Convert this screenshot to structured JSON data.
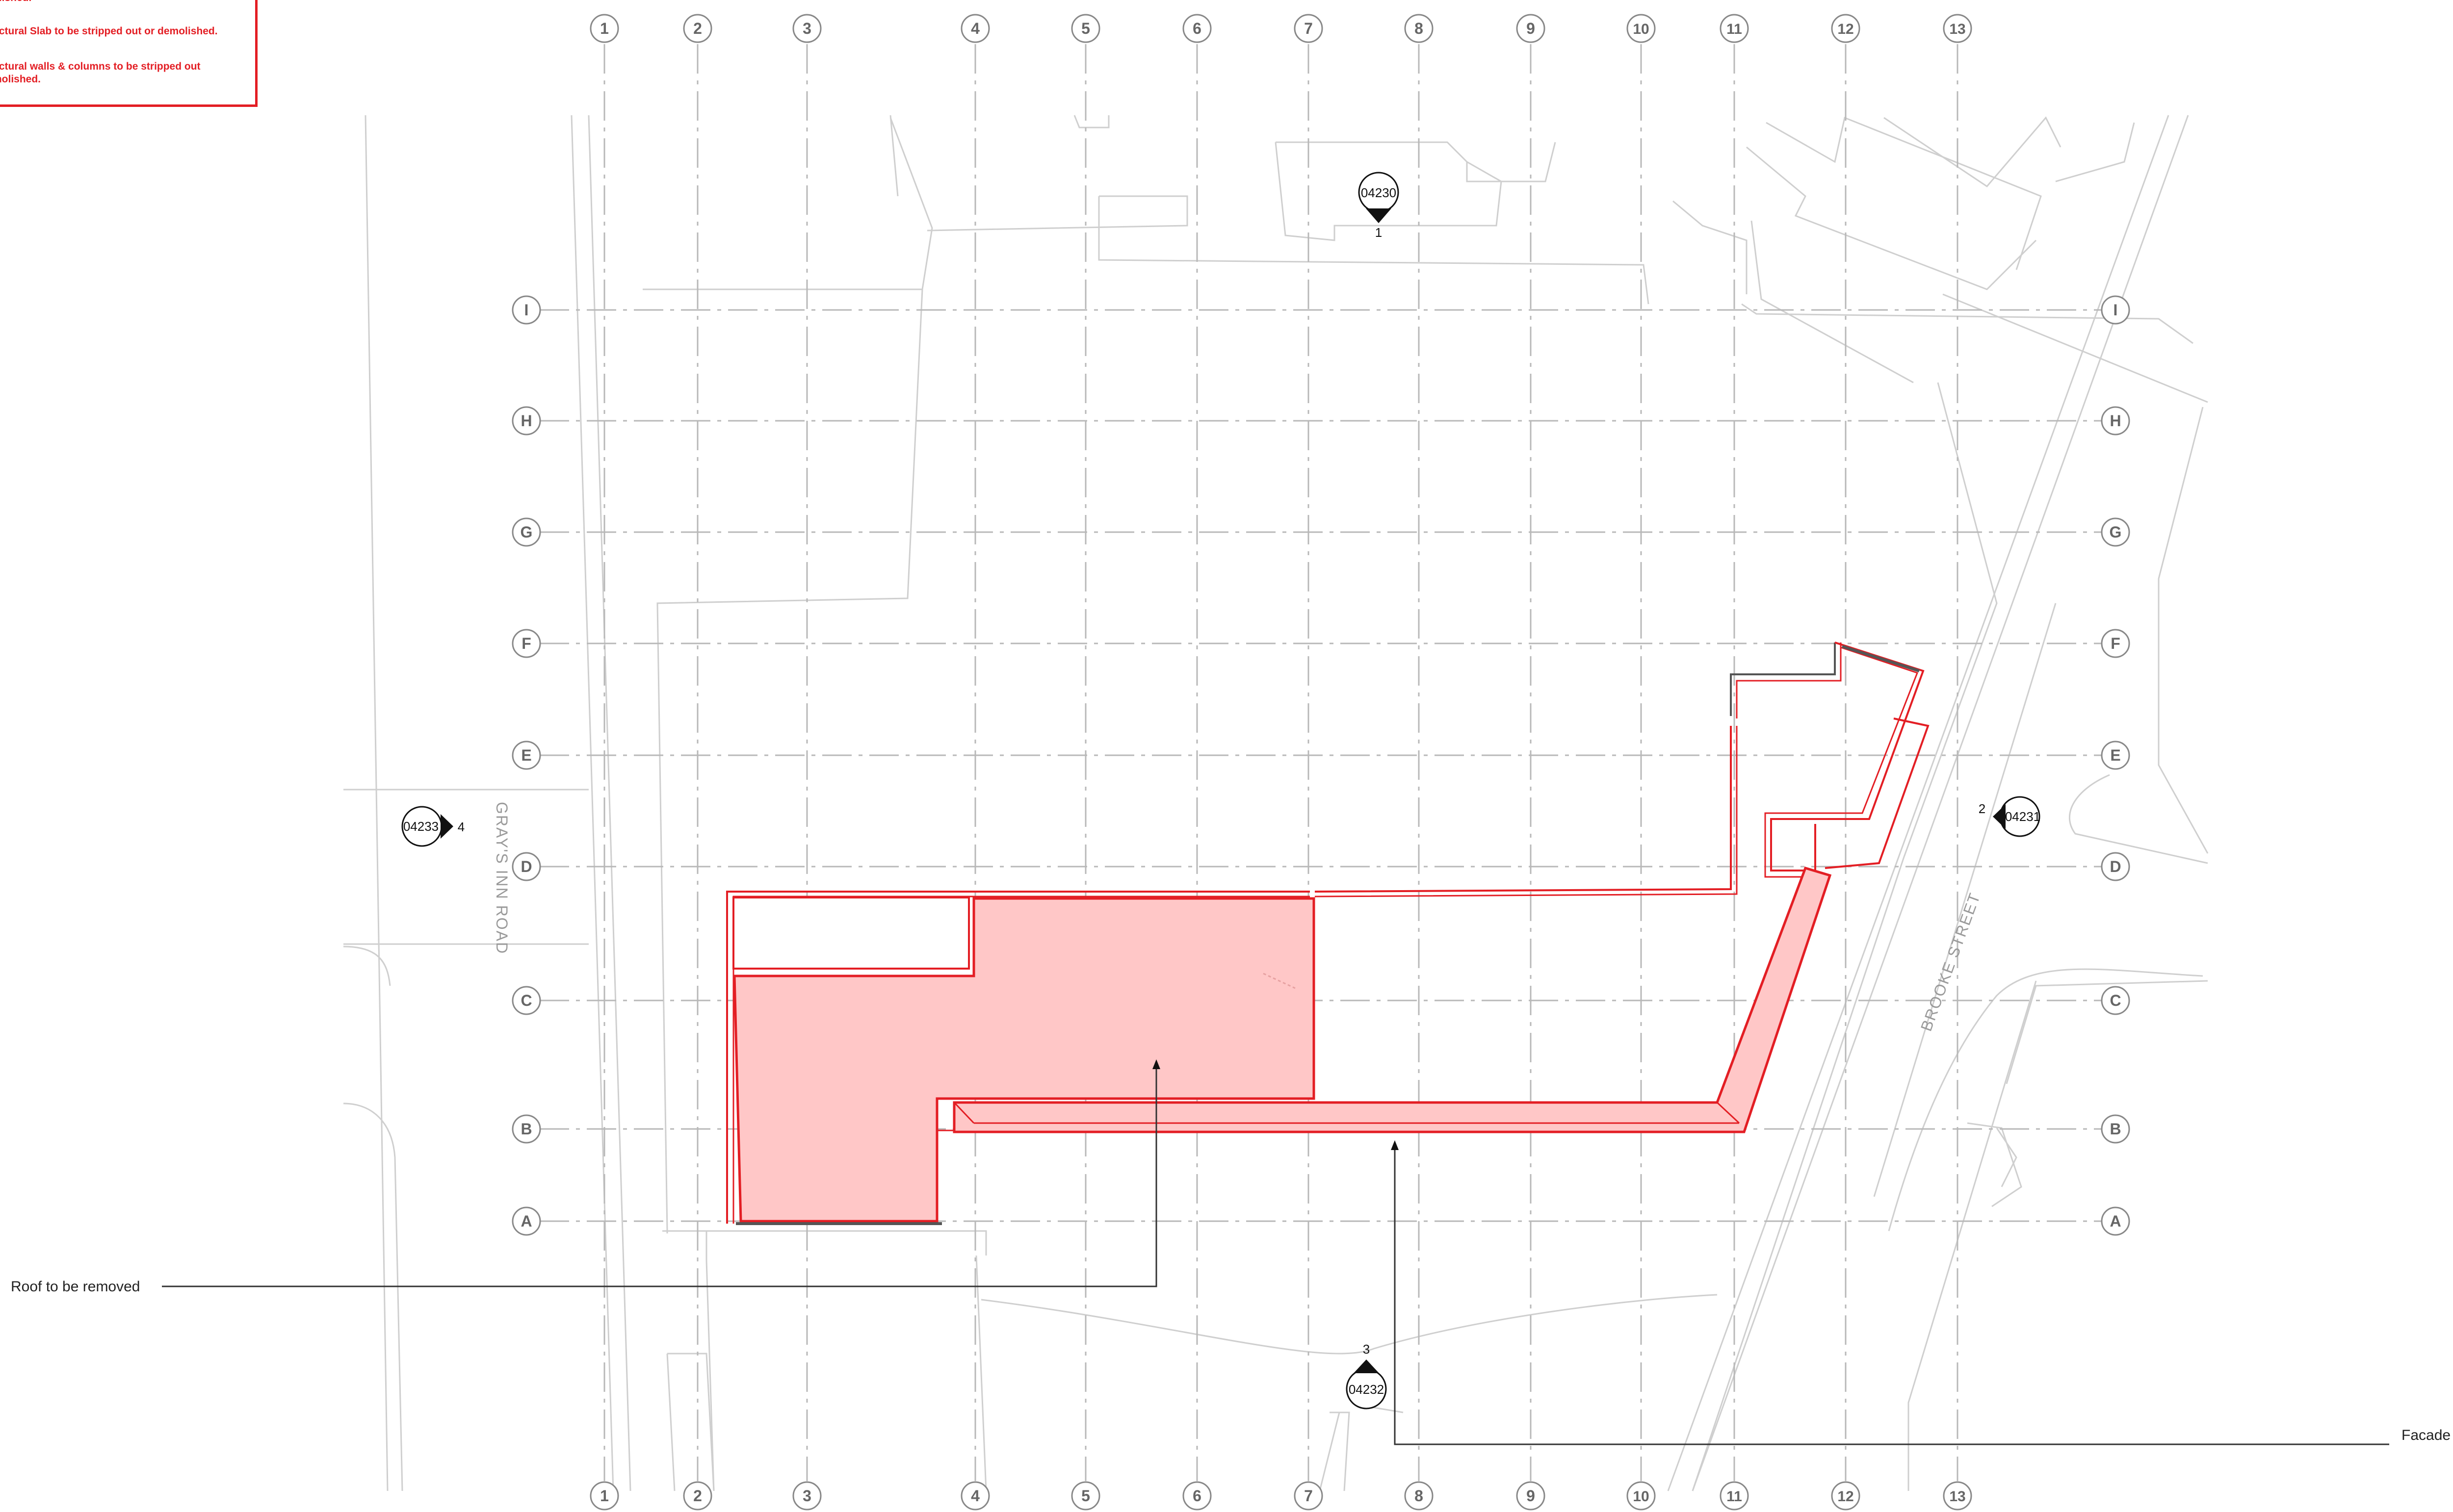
{
  "legend": {
    "items": [
      "olished.",
      "uctural Slab to be stripped out or demolished.",
      "uctural walls & columns to be stripped out\nmolished."
    ]
  },
  "grid": {
    "vertical_labels": [
      "1",
      "2",
      "3",
      "4",
      "5",
      "6",
      "7",
      "8",
      "9",
      "10",
      "11",
      "12",
      "13"
    ],
    "horizontal_labels": [
      "I",
      "H",
      "G",
      "F",
      "E",
      "D",
      "C",
      "B",
      "A"
    ]
  },
  "streets": {
    "grays_inn_road": "GRAY'S INN ROAD",
    "brooke_street": "BROOKE STREET"
  },
  "section_markers": [
    {
      "ref": "04230",
      "number": "1"
    },
    {
      "ref": "04231",
      "number": "2"
    },
    {
      "ref": "04232",
      "number": "3"
    },
    {
      "ref": "04233",
      "number": "4"
    }
  ],
  "callouts": {
    "roof": "Roof to be removed",
    "facade": "Facade to be removed"
  },
  "colors": {
    "demolition_red": "#e31e24",
    "demolition_fill": "#ffc7c7",
    "grid_line": "#b5b5b5",
    "context_line": "#cfcfcf"
  }
}
